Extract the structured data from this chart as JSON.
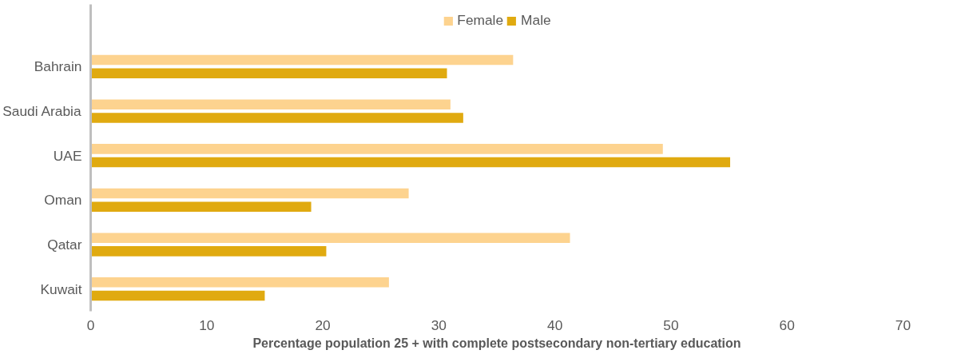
{
  "chart_data": {
    "type": "bar",
    "orientation": "horizontal",
    "xlabel": "Percentage population 25 + with complete postsecondary non-tertiary education",
    "categories": [
      "Bahrain",
      "Saudi Arabia",
      "UAE",
      "Oman",
      "Qatar",
      "Kuwait"
    ],
    "series": [
      {
        "name": "Female",
        "color": "#fdd38f",
        "values": [
          36.4,
          31.0,
          49.3,
          27.4,
          41.3,
          25.7
        ]
      },
      {
        "name": "Male",
        "color": "#e0aa10",
        "values": [
          30.7,
          32.1,
          55.1,
          19.0,
          20.3,
          15.0
        ]
      }
    ],
    "xlim": [
      0,
      70
    ],
    "xticks": [
      0,
      10,
      20,
      30,
      40,
      50,
      60,
      70
    ],
    "grid": false,
    "legend": "top"
  }
}
